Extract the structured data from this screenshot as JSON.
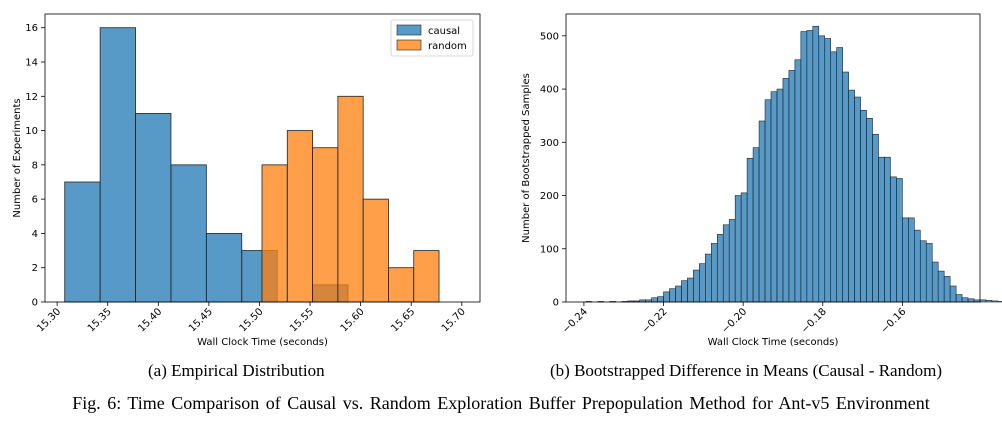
{
  "figure": {
    "caption": "Fig. 6: Time Comparison of Causal vs. Random Exploration Buffer Prepopulation Method for Ant-v5 Environment"
  },
  "chart_data": [
    {
      "type": "bar",
      "subcaption": "(a) Empirical Distribution",
      "xlabel": "Wall Clock Time (seconds)",
      "ylabel": "Number of Experiments",
      "xlim": [
        15.288,
        15.718
      ],
      "ylim": [
        0,
        16.8
      ],
      "xticks": [
        "15.30",
        "15.35",
        "15.40",
        "15.45",
        "15.50",
        "15.55",
        "15.60",
        "15.65",
        "15.70"
      ],
      "yticks": [
        "0",
        "2",
        "4",
        "6",
        "8",
        "10",
        "12",
        "14",
        "16"
      ],
      "legend_position": "top-right",
      "grid": false,
      "series": [
        {
          "name": "causal",
          "color": "#1f77b4",
          "bins": [
            {
              "x0": 15.3075,
              "x1": 15.3425,
              "count": 7
            },
            {
              "x0": 15.3425,
              "x1": 15.3775,
              "count": 16
            },
            {
              "x0": 15.3775,
              "x1": 15.4125,
              "count": 11
            },
            {
              "x0": 15.4125,
              "x1": 15.4475,
              "count": 8
            },
            {
              "x0": 15.4475,
              "x1": 15.4825,
              "count": 4
            },
            {
              "x0": 15.4825,
              "x1": 15.5175,
              "count": 3
            },
            {
              "x0": 15.5525,
              "x1": 15.5875,
              "count": 1
            }
          ]
        },
        {
          "name": "random",
          "color": "#ff7f0e",
          "bins": [
            {
              "x0": 15.5025,
              "x1": 15.5275,
              "count": 8
            },
            {
              "x0": 15.5275,
              "x1": 15.5525,
              "count": 10
            },
            {
              "x0": 15.5525,
              "x1": 15.5775,
              "count": 9
            },
            {
              "x0": 15.5775,
              "x1": 15.6025,
              "count": 12
            },
            {
              "x0": 15.6025,
              "x1": 15.6275,
              "count": 6
            },
            {
              "x0": 15.6275,
              "x1": 15.6525,
              "count": 2
            },
            {
              "x0": 15.6525,
              "x1": 15.6775,
              "count": 3
            }
          ]
        }
      ]
    },
    {
      "type": "bar",
      "subcaption": "(b) Bootstrapped Difference in Means (Causal - Random)",
      "xlabel": "Wall Clock Time (seconds)",
      "ylabel": "Number of Bootstrapped Samples",
      "xlim": [
        -0.2445,
        -0.1405
      ],
      "ylim": [
        0,
        541
      ],
      "xticks": [
        "−0.24",
        "−0.22",
        "−0.20",
        "−0.18",
        "−0.16"
      ],
      "xtick_values": [
        -0.24,
        -0.22,
        -0.2,
        -0.18,
        -0.16
      ],
      "yticks": [
        "0",
        "100",
        "200",
        "300",
        "400",
        "500"
      ],
      "grid": false,
      "series": [
        {
          "name": "",
          "color": "#1f77b4",
          "bin_start": -0.2395,
          "bin_width": 0.0015,
          "counts": [
            1,
            0,
            1,
            0,
            1,
            0,
            1,
            2,
            2,
            4,
            4,
            8,
            10,
            19,
            25,
            30,
            40,
            45,
            60,
            72,
            90,
            110,
            127,
            145,
            155,
            200,
            205,
            270,
            290,
            340,
            380,
            395,
            400,
            420,
            435,
            455,
            508,
            510,
            518,
            500,
            495,
            470,
            478,
            432,
            398,
            385,
            360,
            345,
            315,
            272,
            272,
            235,
            232,
            158,
            158,
            135,
            115,
            110,
            75,
            58,
            48,
            30,
            14,
            8,
            6,
            4,
            4,
            3,
            2,
            1,
            0,
            1,
            0,
            0,
            0,
            0,
            0,
            1
          ]
        }
      ]
    }
  ]
}
